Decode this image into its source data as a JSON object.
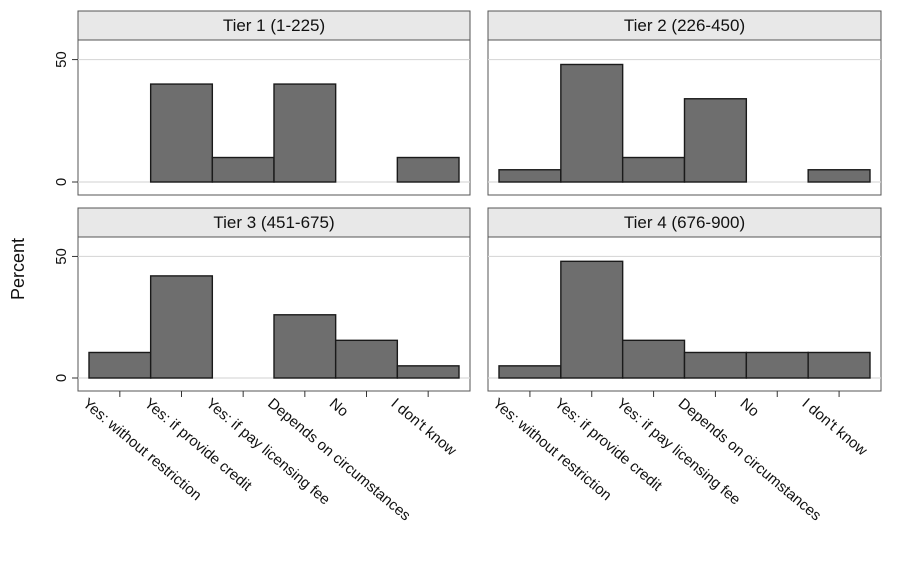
{
  "chart_data": {
    "type": "bar",
    "ylabel": "Percent",
    "ylim": [
      0,
      58
    ],
    "yticks": [
      0,
      50
    ],
    "grid": true,
    "categories": [
      "Yes: without restriction",
      "Yes: if provide credit",
      "Yes: if pay licensing fee",
      "Depends on circumstances",
      "No",
      "I don't know"
    ],
    "panels": [
      {
        "title": "Tier 1 (1-225)",
        "values": [
          0,
          40,
          10,
          40,
          0,
          10
        ]
      },
      {
        "title": "Tier 2 (226-450)",
        "values": [
          5,
          48,
          10,
          34,
          0,
          5
        ]
      },
      {
        "title": "Tier 3 (451-675)",
        "values": [
          10.5,
          42,
          0,
          26,
          15.5,
          5
        ]
      },
      {
        "title": "Tier 4 (676-900)",
        "values": [
          5,
          48,
          15.5,
          10.5,
          10.5,
          10.5
        ]
      }
    ],
    "colors": {
      "bar": "#6e6e6e",
      "bar_edge": "#1a1a1a",
      "strip": "#e8e8e8",
      "grid": "#d9d9d9"
    }
  }
}
